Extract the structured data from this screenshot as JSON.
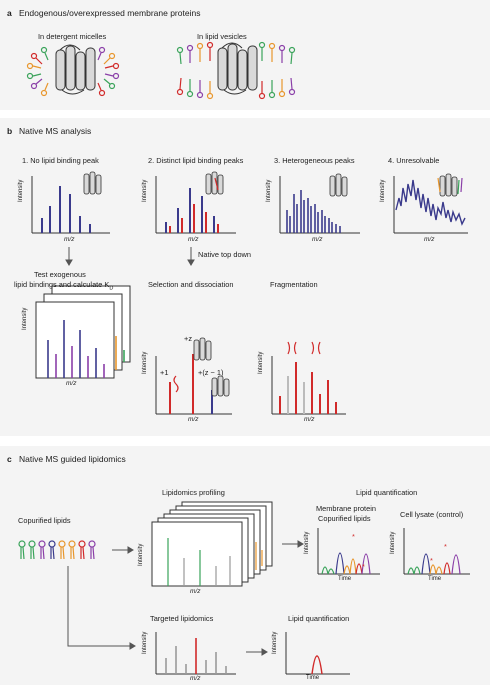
{
  "panel_a": {
    "letter": "a",
    "title": "Endogenous/overexpressed membrane proteins",
    "left_label": "In detergent micelles",
    "right_label": "In lipid vesicles"
  },
  "panel_b": {
    "letter": "b",
    "title": "Native MS analysis",
    "cases": [
      {
        "label": "1. No lipid binding peak"
      },
      {
        "label": "2. Distinct lipid binding peaks"
      },
      {
        "label": "3. Heterogeneous peaks"
      },
      {
        "label": "4. Unresolvable"
      }
    ],
    "axis_y": "Intensity",
    "axis_x": "m/z",
    "native_top_down": "Native top down",
    "test_line1": "Test exogenous",
    "test_line2": "lipid bindings and calculate K",
    "test_sub": "D",
    "selection": "Selection and dissociation",
    "fragmentation": "Fragmentation",
    "charge_z": "+z",
    "charge_1": "+1",
    "charge_z1": "+(z − 1)"
  },
  "panel_c": {
    "letter": "c",
    "title": "Native MS guided lipidomics",
    "copurified": "Copurified lipids",
    "profiling": "Lipidomics profiling",
    "quant_title": "Lipid quantification",
    "memb_line1": "Membrane protein",
    "memb_line2": "Copurified lipids",
    "lysate": "Cell lysate (control)",
    "targeted": "Targeted lipidomics",
    "quant2": "Lipid quantification",
    "time": "Time",
    "axis_y": "Intensity",
    "axis_x": "m/z",
    "star": "*"
  },
  "colors": {
    "navy": "#3a3a8c",
    "red": "#d12a2a",
    "green": "#3aa35a",
    "orange": "#e8962c",
    "purple": "#8a3fa8",
    "grey": "#9a9a9a",
    "panel_bg": "#f4f4f4"
  }
}
